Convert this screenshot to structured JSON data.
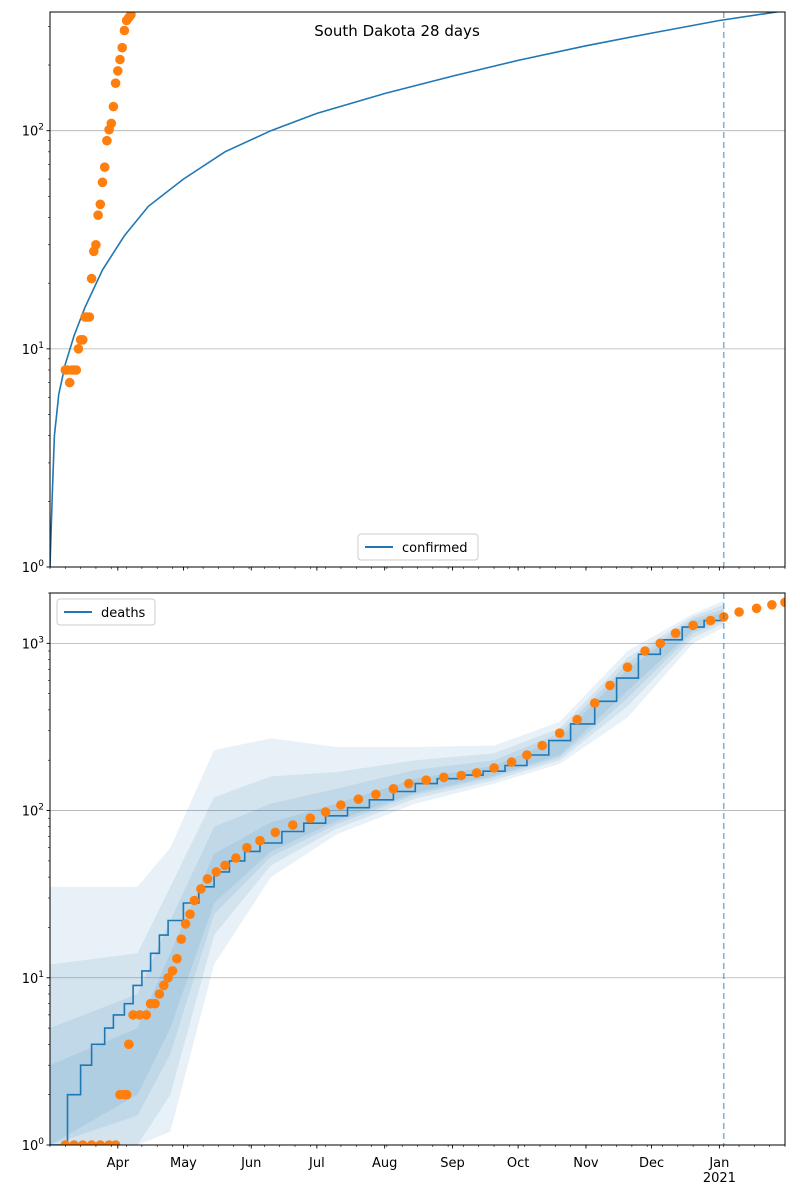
{
  "chart_data": [
    {
      "type": "line",
      "title": "South Dakota 28 days",
      "xlabel": "",
      "ylabel": "",
      "yscale": "log",
      "ylim": [
        1,
        350
      ],
      "xlim": [
        "2020-03-01",
        "2021-01-31"
      ],
      "grid": "y-major",
      "legend": {
        "position": "lower center",
        "entries": [
          "confirmed"
        ]
      },
      "accent_colors": {
        "model": "#1f77b4",
        "observed": "#ff7f0e"
      },
      "vline": "2021-01-03",
      "series": [
        {
          "name": "confirmed",
          "kind": "line",
          "x": [
            "2020-03-01",
            "2020-03-02",
            "2020-03-03",
            "2020-03-05",
            "2020-03-08",
            "2020-03-12",
            "2020-03-17",
            "2020-03-25",
            "2020-04-04",
            "2020-04-15",
            "2020-05-01",
            "2020-05-20",
            "2020-06-10",
            "2020-07-01",
            "2020-08-01",
            "2020-09-01",
            "2020-10-01",
            "2020-11-01",
            "2020-12-01",
            "2021-01-01",
            "2021-01-31"
          ],
          "values": [
            1,
            2.1,
            4,
            6.2,
            8.5,
            11.5,
            15.5,
            23,
            33,
            45,
            60,
            80,
            100,
            120,
            148,
            178,
            210,
            245,
            280,
            320,
            355
          ]
        },
        {
          "name": "",
          "kind": "scatter",
          "x": [
            "2020-03-08",
            "2020-03-09",
            "2020-03-10",
            "2020-03-11",
            "2020-03-12",
            "2020-03-13",
            "2020-03-14",
            "2020-03-15",
            "2020-03-16",
            "2020-03-17",
            "2020-03-18",
            "2020-03-19",
            "2020-03-20",
            "2020-03-21",
            "2020-03-22",
            "2020-03-23",
            "2020-03-24",
            "2020-03-25",
            "2020-03-26",
            "2020-03-27",
            "2020-03-28",
            "2020-03-29",
            "2020-03-30",
            "2020-03-31",
            "2020-04-01",
            "2020-04-02",
            "2020-04-03",
            "2020-04-04",
            "2020-04-05",
            "2020-04-06",
            "2020-04-07"
          ],
          "values": [
            8,
            8,
            7,
            8,
            8,
            8,
            10,
            11,
            11,
            14,
            14,
            14,
            21,
            28,
            30,
            41,
            46,
            58,
            68,
            90,
            101,
            108,
            129,
            165,
            188,
            212,
            240,
            288,
            320,
            330,
            340
          ]
        }
      ]
    },
    {
      "type": "line",
      "title": "",
      "xlabel": "",
      "ylabel": "",
      "yscale": "log",
      "ylim": [
        1,
        2000
      ],
      "xlim": [
        "2020-03-01",
        "2021-01-31"
      ],
      "grid": "y-major",
      "legend": {
        "position": "top-left",
        "entries": [
          "deaths"
        ]
      },
      "vline": "2021-01-03",
      "x_tick_labels": [
        "Apr",
        "May",
        "Jun",
        "Jul",
        "Aug",
        "Sep",
        "Oct",
        "Nov",
        "Dec",
        "Jan\n2021"
      ],
      "series": [
        {
          "name": "deaths",
          "kind": "step",
          "x": [
            "2020-03-01",
            "2020-03-08",
            "2020-03-09",
            "2020-03-15",
            "2020-03-20",
            "2020-03-26",
            "2020-03-30",
            "2020-04-04",
            "2020-04-08",
            "2020-04-12",
            "2020-04-16",
            "2020-04-20",
            "2020-04-24",
            "2020-05-01",
            "2020-05-08",
            "2020-05-15",
            "2020-05-22",
            "2020-05-29",
            "2020-06-05",
            "2020-06-15",
            "2020-06-25",
            "2020-07-05",
            "2020-07-15",
            "2020-07-25",
            "2020-08-05",
            "2020-08-15",
            "2020-08-25",
            "2020-09-05",
            "2020-09-15",
            "2020-09-25",
            "2020-10-05",
            "2020-10-15",
            "2020-10-25",
            "2020-11-05",
            "2020-11-15",
            "2020-11-25",
            "2020-12-05",
            "2020-12-15",
            "2020-12-25",
            "2021-01-03"
          ],
          "values": [
            1,
            1,
            2,
            3,
            4,
            5,
            6,
            7,
            9,
            11,
            14,
            18,
            22,
            28,
            35,
            43,
            50,
            57,
            64,
            75,
            84,
            93,
            104,
            116,
            130,
            145,
            155,
            163,
            172,
            186,
            215,
            262,
            330,
            450,
            620,
            860,
            1050,
            1250,
            1370,
            1460
          ]
        },
        {
          "name": "",
          "kind": "scatter",
          "x": [
            "2020-03-08",
            "2020-03-12",
            "2020-03-16",
            "2020-03-20",
            "2020-03-24",
            "2020-03-28",
            "2020-03-31",
            "2020-04-02",
            "2020-04-04",
            "2020-04-05",
            "2020-04-06",
            "2020-04-08",
            "2020-04-11",
            "2020-04-14",
            "2020-04-16",
            "2020-04-18",
            "2020-04-20",
            "2020-04-22",
            "2020-04-24",
            "2020-04-26",
            "2020-04-28",
            "2020-04-30",
            "2020-05-02",
            "2020-05-04",
            "2020-05-06",
            "2020-05-09",
            "2020-05-12",
            "2020-05-16",
            "2020-05-20",
            "2020-05-25",
            "2020-05-30",
            "2020-06-05",
            "2020-06-12",
            "2020-06-20",
            "2020-06-28",
            "2020-07-05",
            "2020-07-12",
            "2020-07-20",
            "2020-07-28",
            "2020-08-05",
            "2020-08-12",
            "2020-08-20",
            "2020-08-28",
            "2020-09-05",
            "2020-09-12",
            "2020-09-20",
            "2020-09-28",
            "2020-10-05",
            "2020-10-12",
            "2020-10-20",
            "2020-10-28",
            "2020-11-05",
            "2020-11-12",
            "2020-11-20",
            "2020-11-28",
            "2020-12-05",
            "2020-12-12",
            "2020-12-20",
            "2020-12-28",
            "2021-01-03",
            "2021-01-10",
            "2021-01-18",
            "2021-01-25",
            "2021-01-31"
          ],
          "values": [
            1,
            1,
            1,
            1,
            1,
            1,
            1,
            2,
            2,
            2,
            4,
            6,
            6,
            6,
            7,
            7,
            8,
            9,
            10,
            11,
            13,
            17,
            21,
            24,
            29,
            34,
            39,
            43,
            47,
            52,
            60,
            66,
            74,
            82,
            90,
            98,
            108,
            117,
            125,
            135,
            145,
            152,
            158,
            162,
            168,
            180,
            195,
            215,
            245,
            290,
            350,
            440,
            560,
            720,
            900,
            1000,
            1150,
            1280,
            1370,
            1440,
            1540,
            1620,
            1700,
            1760
          ]
        }
      ],
      "bands": [
        {
          "level": 1,
          "x": [
            "2020-03-01",
            "2020-04-10",
            "2020-04-25",
            "2020-05-15",
            "2020-06-10",
            "2020-07-10",
            "2020-08-15",
            "2020-09-20",
            "2020-10-20",
            "2020-11-20",
            "2020-12-20",
            "2021-01-03"
          ],
          "lower": [
            1,
            1,
            1.2,
            12,
            40,
            72,
            110,
            145,
            190,
            360,
            1000,
            1250
          ],
          "upper": [
            35,
            35,
            60,
            230,
            270,
            240,
            240,
            245,
            340,
            900,
            1500,
            1800
          ]
        },
        {
          "level": 2,
          "x": [
            "2020-03-01",
            "2020-04-10",
            "2020-04-25",
            "2020-05-15",
            "2020-06-10",
            "2020-07-10",
            "2020-08-15",
            "2020-09-20",
            "2020-10-20",
            "2020-11-20",
            "2020-12-20",
            "2021-01-03"
          ],
          "lower": [
            1,
            1,
            2,
            18,
            47,
            78,
            118,
            152,
            200,
            420,
            1080,
            1320
          ],
          "upper": [
            12,
            14,
            35,
            120,
            160,
            170,
            200,
            220,
            310,
            820,
            1450,
            1700
          ]
        },
        {
          "level": 3,
          "x": [
            "2020-03-01",
            "2020-04-10",
            "2020-04-25",
            "2020-05-15",
            "2020-06-10",
            "2020-07-10",
            "2020-08-15",
            "2020-09-20",
            "2020-10-20",
            "2020-11-20",
            "2020-12-20",
            "2021-01-03"
          ],
          "lower": [
            1,
            1.5,
            3.5,
            24,
            53,
            83,
            124,
            158,
            208,
            470,
            1150,
            1370
          ],
          "upper": [
            5,
            8,
            22,
            80,
            110,
            135,
            175,
            200,
            290,
            760,
            1400,
            1600
          ]
        },
        {
          "level": 4,
          "x": [
            "2020-03-01",
            "2020-04-10",
            "2020-04-25",
            "2020-05-15",
            "2020-06-10",
            "2020-07-10",
            "2020-08-15",
            "2020-09-20",
            "2020-10-20",
            "2020-11-20",
            "2020-12-20",
            "2021-01-03"
          ],
          "lower": [
            1,
            2,
            5,
            28,
            57,
            87,
            128,
            162,
            215,
            520,
            1200,
            1410
          ],
          "upper": [
            3,
            5,
            14,
            55,
            85,
            110,
            155,
            185,
            270,
            700,
            1350,
            1530
          ]
        }
      ]
    }
  ]
}
